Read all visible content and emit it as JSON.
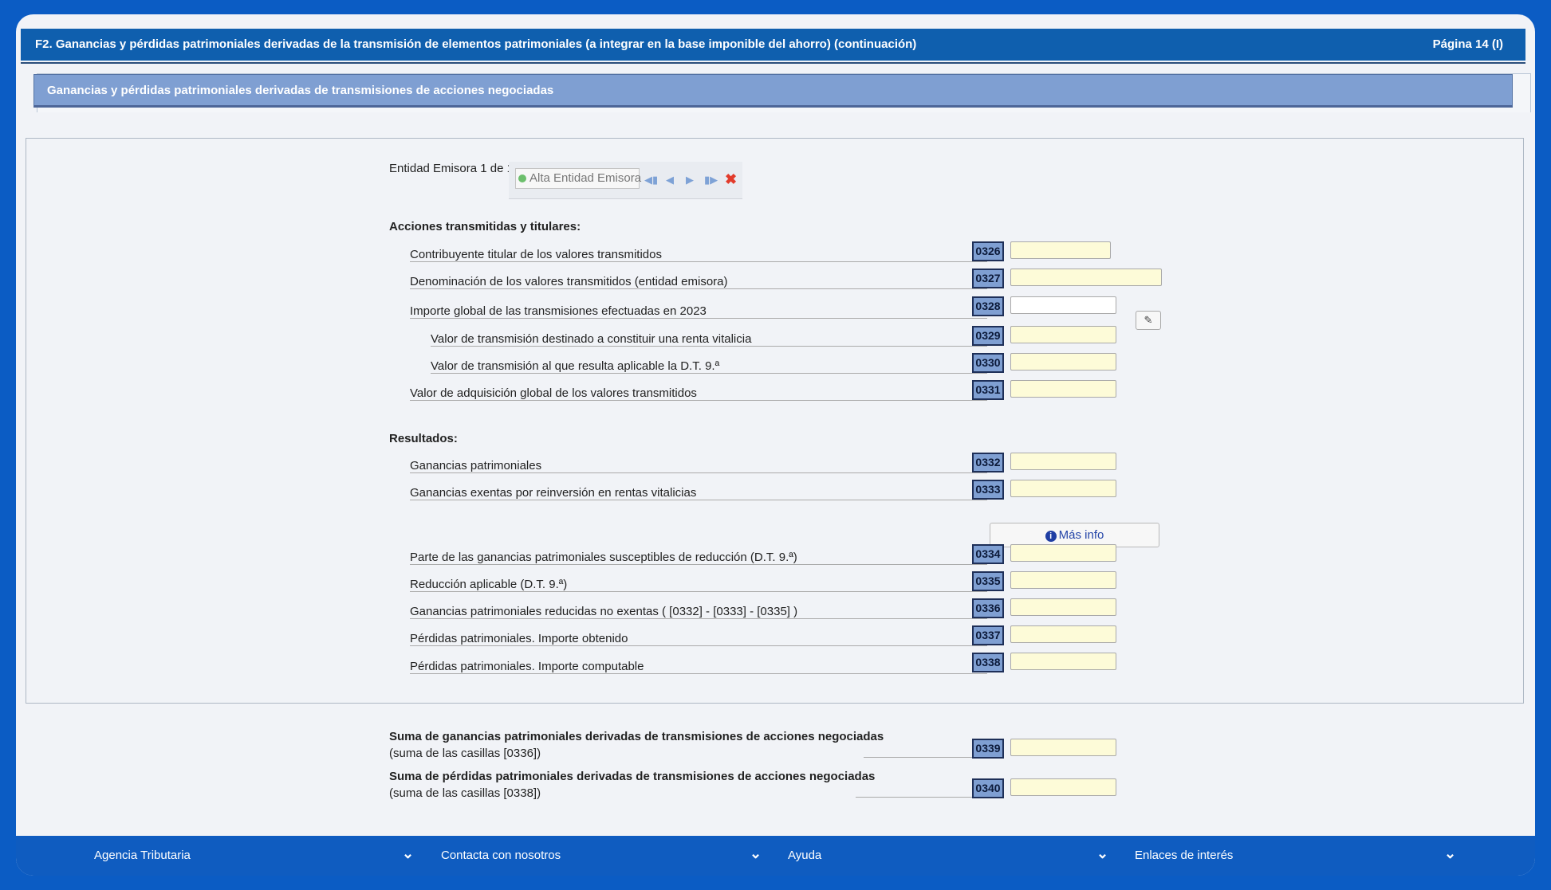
{
  "header": {
    "title": "F2.  Ganancias y pérdidas patrimoniales derivadas de la transmisión de elementos patrimoniales (a integrar en la base imponible del ahorro) (continuación)",
    "page": "Página 14 (I)"
  },
  "section": {
    "title": "Ganancias y pérdidas patrimoniales derivadas de transmisiones de acciones negociadas"
  },
  "entity": {
    "counter": "Entidad Emisora 1 de 1",
    "alta_label": "Alta Entidad Emisora"
  },
  "groups": {
    "acciones": "Acciones transmitidas y titulares:",
    "resultados": "Resultados:"
  },
  "rows": {
    "r0326": {
      "code": "0326",
      "label": "Contribuyente titular de los valores transmitidos",
      "value": ""
    },
    "r0327": {
      "code": "0327",
      "label": "Denominación de los valores transmitidos (entidad emisora)",
      "value": ""
    },
    "r0328": {
      "code": "0328",
      "label": "Importe global de las transmisiones efectuadas en 2023",
      "value": ""
    },
    "r0329": {
      "code": "0329",
      "label": "Valor de transmisión destinado a constituir una renta vitalicia",
      "value": ""
    },
    "r0330": {
      "code": "0330",
      "label": "Valor de transmisión al que resulta aplicable la D.T. 9.ª",
      "value": ""
    },
    "r0331": {
      "code": "0331",
      "label": "Valor de adquisición global de los valores transmitidos",
      "value": ""
    },
    "r0332": {
      "code": "0332",
      "label": "Ganancias patrimoniales",
      "value": ""
    },
    "r0333": {
      "code": "0333",
      "label": "Ganancias exentas por reinversión en rentas vitalicias",
      "value": ""
    },
    "r0334": {
      "code": "0334",
      "label": "Parte de las ganancias patrimoniales susceptibles de reducción (D.T. 9.ª)",
      "value": ""
    },
    "r0335": {
      "code": "0335",
      "label": "Reducción aplicable (D.T. 9.ª)",
      "value": ""
    },
    "r0336": {
      "code": "0336",
      "label": "Ganancias patrimoniales reducidas no exentas ( [0332] - [0333] - [0335] )",
      "value": ""
    },
    "r0337": {
      "code": "0337",
      "label": "Pérdidas patrimoniales. Importe obtenido",
      "value": ""
    },
    "r0338": {
      "code": "0338",
      "label": "Pérdidas patrimoniales. Importe computable",
      "value": ""
    },
    "r0339": {
      "code": "0339",
      "label": "Suma de ganancias patrimoniales derivadas de transmisiones de acciones negociadas",
      "sub": "(suma de las casillas [0336])",
      "value": ""
    },
    "r0340": {
      "code": "0340",
      "label": "Suma de pérdidas patrimoniales derivadas de transmisiones de acciones negociadas",
      "sub": "(suma de las casillas [0338])",
      "value": ""
    }
  },
  "mas_info": "Más info",
  "footer": {
    "items": [
      "Agencia Tributaria",
      "Contacta con nosotros",
      "Ayuda",
      "Enlaces de interés"
    ]
  },
  "colors": {
    "background": "#0b5cc4",
    "header_bar": "#0f5fae",
    "section_bar": "#7f9fd2",
    "code_box": "#7f9fd2",
    "input_fill": "#fdfbd8",
    "footer": "#0f5cc0",
    "delete_icon": "#e23b2b"
  },
  "icons": [
    "add-icon",
    "first-icon",
    "prev-icon",
    "next-icon",
    "last-icon",
    "delete-icon",
    "pencil-icon",
    "info-icon",
    "chevron-down-icon"
  ]
}
